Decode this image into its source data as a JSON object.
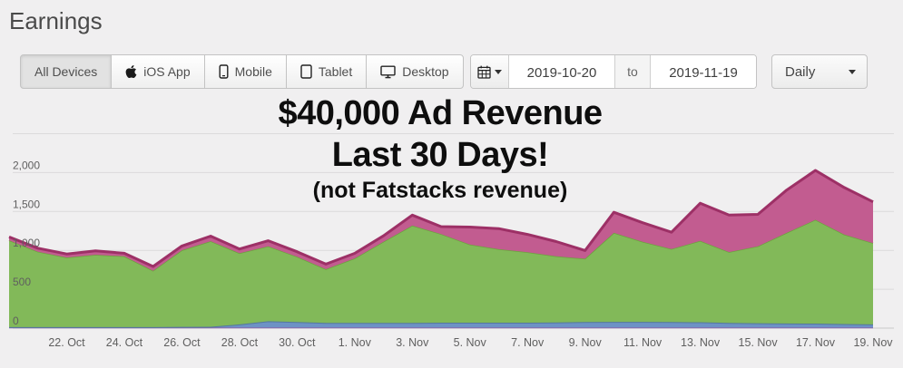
{
  "page": {
    "title": "Earnings"
  },
  "toolbar": {
    "device_filters": [
      {
        "label": "All Devices",
        "icon": "none",
        "selected": true
      },
      {
        "label": "iOS App",
        "icon": "apple-icon",
        "selected": false
      },
      {
        "label": "Mobile",
        "icon": "mobile-icon",
        "selected": false
      },
      {
        "label": "Tablet",
        "icon": "tablet-icon",
        "selected": false
      },
      {
        "label": "Desktop",
        "icon": "desktop-icon",
        "selected": false
      }
    ],
    "date_range": {
      "icon": "calendar-icon",
      "start": "2019-10-20",
      "to_label": "to",
      "end": "2019-11-19"
    },
    "granularity": {
      "value": "Daily",
      "icon": "chevron-down-icon"
    }
  },
  "overlay": {
    "line1": "$40,000 Ad Revenue",
    "line2": "Last 30 Days!",
    "line3": "(not Fatstacks revenue)"
  },
  "chart_data": {
    "type": "area",
    "stacked": true,
    "x": [
      "2019-10-20",
      "2019-10-21",
      "2019-10-22",
      "2019-10-23",
      "2019-10-24",
      "2019-10-25",
      "2019-10-26",
      "2019-10-27",
      "2019-10-28",
      "2019-10-29",
      "2019-10-30",
      "2019-10-31",
      "2019-11-01",
      "2019-11-02",
      "2019-11-03",
      "2019-11-04",
      "2019-11-05",
      "2019-11-06",
      "2019-11-07",
      "2019-11-08",
      "2019-11-09",
      "2019-11-10",
      "2019-11-11",
      "2019-11-12",
      "2019-11-13",
      "2019-11-14",
      "2019-11-15",
      "2019-11-16",
      "2019-11-17",
      "2019-11-18",
      "2019-11-19"
    ],
    "x_tick_labels": [
      "22. Oct",
      "24. Oct",
      "26. Oct",
      "28. Oct",
      "30. Oct",
      "1. Nov",
      "3. Nov",
      "5. Nov",
      "7. Nov",
      "9. Nov",
      "11. Nov",
      "13. Nov",
      "15. Nov",
      "17. Nov",
      "19. Nov"
    ],
    "x_tick_indices": [
      2,
      4,
      6,
      8,
      10,
      12,
      14,
      16,
      18,
      20,
      22,
      24,
      26,
      28,
      30
    ],
    "y_ticks": [
      {
        "value": 0,
        "label": "0"
      },
      {
        "value": 500,
        "label": "500"
      },
      {
        "value": 1000,
        "label": "1,000"
      },
      {
        "value": 1500,
        "label": "1,500"
      },
      {
        "value": 2000,
        "label": "2,000"
      },
      {
        "value": 2500,
        "label": ""
      }
    ],
    "ylim": [
      0,
      2500
    ],
    "grid": true,
    "legend": "none",
    "series": [
      {
        "name": "purple-series",
        "color": "#b9a7d4",
        "line_color": "#8766ab",
        "line_width": 2,
        "values": [
          8,
          8,
          8,
          8,
          8,
          8,
          8,
          8,
          8,
          8,
          8,
          8,
          8,
          8,
          8,
          8,
          8,
          8,
          8,
          8,
          8,
          8,
          8,
          8,
          8,
          8,
          8,
          8,
          8,
          8,
          8
        ]
      },
      {
        "name": "blue-series",
        "color": "#6d92c5",
        "line_color": "#54779f",
        "line_width": 2,
        "values": [
          5,
          5,
          5,
          5,
          5,
          5,
          8,
          10,
          40,
          80,
          70,
          60,
          58,
          58,
          60,
          62,
          62,
          62,
          62,
          65,
          70,
          72,
          72,
          70,
          68,
          60,
          55,
          52,
          50,
          45,
          40
        ]
      },
      {
        "name": "green-series",
        "color": "#82b959",
        "line_color": "#6da23e",
        "line_width": 1.5,
        "values": [
          1115,
          970,
          895,
          930,
          910,
          725,
          985,
          1100,
          915,
          965,
          840,
          690,
          830,
          1045,
          1250,
          1140,
          1005,
          945,
          905,
          850,
          815,
          1145,
          1030,
          940,
          1045,
          910,
          990,
          1165,
          1335,
          1150,
          1045
        ]
      },
      {
        "name": "pink-series",
        "color": "#c25c90",
        "line_color": "#9d3066",
        "line_width": 3,
        "values": [
          45,
          45,
          45,
          50,
          40,
          55,
          55,
          65,
          55,
          70,
          65,
          65,
          65,
          75,
          135,
          95,
          225,
          265,
          230,
          190,
          105,
          265,
          245,
          215,
          485,
          475,
          410,
          550,
          635,
          605,
          530
        ]
      }
    ]
  }
}
